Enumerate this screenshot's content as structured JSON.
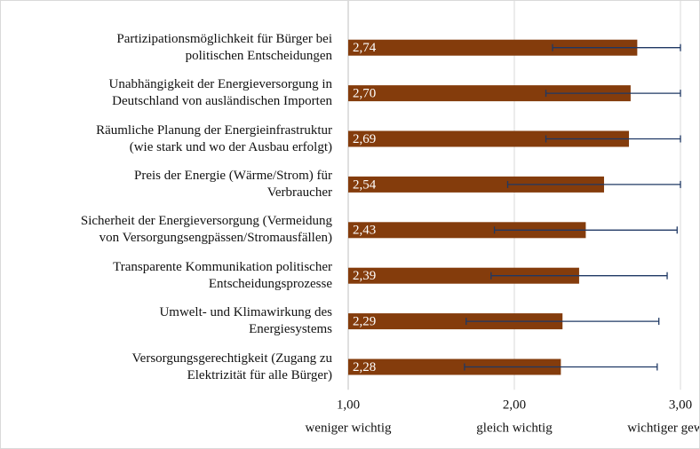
{
  "chart_data": {
    "type": "bar",
    "orientation": "horizontal",
    "categories": [
      "Partizipationsmöglichkeit für Bürger bei\npolitischen Entscheidungen",
      "Unabhängigkeit der Energieversorgung in\nDeutschland von ausländischen Importen",
      "Räumliche Planung der Energieinfrastruktur\n(wie stark und wo der Ausbau erfolgt)",
      "Preis der Energie (Wärme/Strom) für\nVerbraucher",
      "Sicherheit der Energieversorgung (Vermeidung\nvon Versorgungsengpässen/Stromausfällen)",
      "Transparente Kommunikation politischer\nEntscheidungsprozesse",
      "Umwelt- und Klimawirkung des\nEnergiesystems",
      "Versorgungsgerechtigkeit (Zugang zu\nElektrizität für alle Bürger)"
    ],
    "values": [
      2.74,
      2.7,
      2.69,
      2.54,
      2.43,
      2.39,
      2.29,
      2.28
    ],
    "value_labels": [
      "2,74",
      "2,70",
      "2,69",
      "2,54",
      "2,43",
      "2,39",
      "2,29",
      "2,28"
    ],
    "errors": [
      0.51,
      0.51,
      0.5,
      0.58,
      0.55,
      0.53,
      0.58,
      0.58
    ],
    "color": "#843c0c",
    "error_color": "#1f3864",
    "xlim": [
      1,
      3
    ],
    "xticks": [
      {
        "value": 1,
        "label": "1,00"
      },
      {
        "value": 2,
        "label": "2,00"
      },
      {
        "value": 3,
        "label": "3,00"
      }
    ],
    "xtick_descriptions": [
      "weniger wichtig",
      "gleich wichtig",
      "wichtiger geworden"
    ],
    "grid": true
  }
}
